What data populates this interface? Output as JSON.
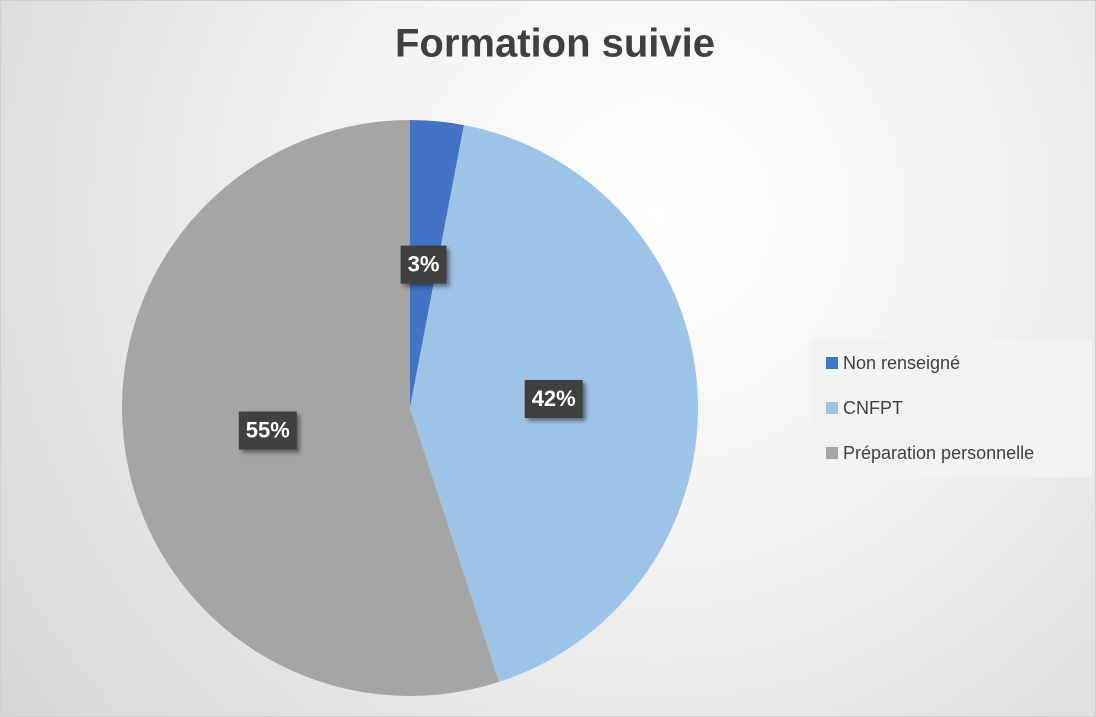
{
  "chart_data": {
    "type": "pie",
    "title": "Formation suivie",
    "categories": [
      "Non renseigné",
      "CNFPT",
      "Préparation personnelle"
    ],
    "values": [
      3,
      42,
      55
    ],
    "value_labels": [
      "3%",
      "42%",
      "55%"
    ],
    "colors": [
      "#4472c4",
      "#9dc3e6",
      "#a5a5a5"
    ],
    "legend": "right"
  }
}
